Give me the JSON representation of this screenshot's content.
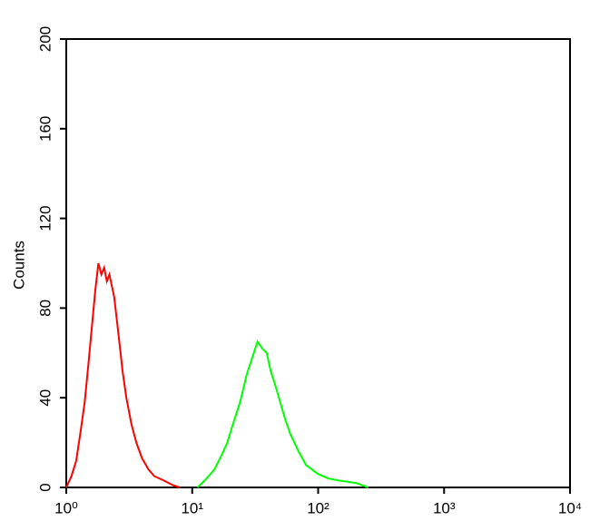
{
  "chart_data": {
    "type": "line",
    "y_label": "Counts",
    "log_x": true,
    "xlim": [
      1,
      10000
    ],
    "xticks": [
      {
        "value": 1,
        "label": "10⁰"
      },
      {
        "value": 10,
        "label": "10¹"
      },
      {
        "value": 100,
        "label": "10²"
      },
      {
        "value": 1000,
        "label": "10³"
      },
      {
        "value": 10000,
        "label": "10⁴"
      }
    ],
    "ylim": [
      0,
      200
    ],
    "yticks": [
      0,
      40,
      80,
      120,
      160,
      200
    ],
    "series": [
      {
        "color": "#ff0000",
        "x": [
          1.0,
          1.1,
          1.2,
          1.3,
          1.4,
          1.5,
          1.6,
          1.7,
          1.8,
          1.9,
          2.0,
          2.1,
          2.2,
          2.4,
          2.6,
          2.8,
          3.0,
          3.3,
          3.6,
          4.0,
          4.5,
          5.0,
          6.0,
          7.0,
          8.0
        ],
        "values": [
          0,
          5,
          12,
          25,
          38,
          55,
          72,
          88,
          100,
          95,
          98,
          92,
          95,
          85,
          68,
          52,
          40,
          28,
          20,
          13,
          8,
          5,
          3,
          1,
          0
        ]
      },
      {
        "color": "#00ff00",
        "x": [
          11,
          12,
          13,
          15,
          17,
          19,
          21,
          24,
          27,
          30,
          33,
          36,
          39,
          42,
          46,
          50,
          55,
          60,
          70,
          80,
          100,
          120,
          150,
          200,
          250
        ],
        "values": [
          0,
          2,
          4,
          8,
          14,
          20,
          28,
          38,
          50,
          58,
          65,
          62,
          60,
          52,
          45,
          38,
          30,
          24,
          16,
          10,
          6,
          4,
          3,
          2,
          0
        ]
      }
    ]
  }
}
